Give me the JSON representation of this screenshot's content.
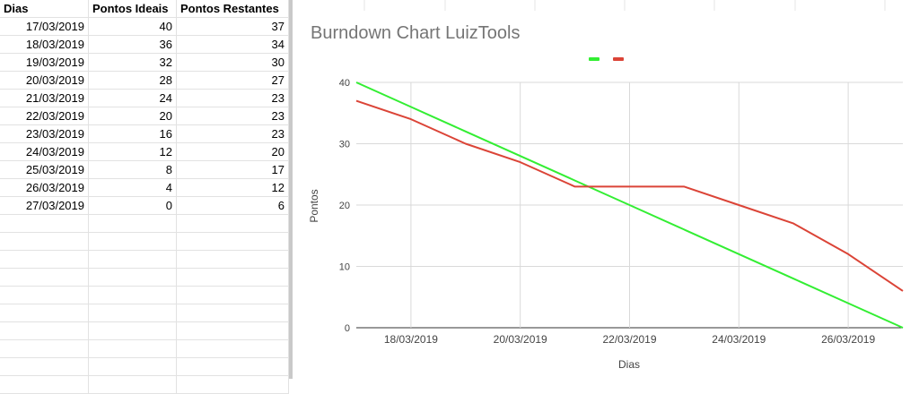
{
  "sheet": {
    "headers": [
      "Dias",
      "Pontos Ideais",
      "Pontos Restantes"
    ],
    "rows": [
      [
        "17/03/2019",
        "40",
        "37"
      ],
      [
        "18/03/2019",
        "36",
        "34"
      ],
      [
        "19/03/2019",
        "32",
        "30"
      ],
      [
        "20/03/2019",
        "28",
        "27"
      ],
      [
        "21/03/2019",
        "24",
        "23"
      ],
      [
        "22/03/2019",
        "20",
        "23"
      ],
      [
        "23/03/2019",
        "16",
        "23"
      ],
      [
        "24/03/2019",
        "12",
        "20"
      ],
      [
        "25/03/2019",
        "8",
        "17"
      ],
      [
        "26/03/2019",
        "4",
        "12"
      ],
      [
        "27/03/2019",
        "0",
        "6"
      ]
    ]
  },
  "chart_data": {
    "type": "line",
    "title": "Burndown Chart LuizTools",
    "xlabel": "Dias",
    "ylabel": "Pontos",
    "x": [
      "17/03/2019",
      "18/03/2019",
      "19/03/2019",
      "20/03/2019",
      "21/03/2019",
      "22/03/2019",
      "23/03/2019",
      "24/03/2019",
      "25/03/2019",
      "26/03/2019",
      "27/03/2019"
    ],
    "x_tick_labels": [
      "18/03/2019",
      "20/03/2019",
      "22/03/2019",
      "24/03/2019",
      "26/03/2019"
    ],
    "ylim": [
      0,
      40
    ],
    "y_ticks": [
      0,
      10,
      20,
      30,
      40
    ],
    "grid": true,
    "legend": "top-center",
    "series": [
      {
        "values": [
          40,
          36,
          32,
          28,
          24,
          20,
          16,
          12,
          8,
          4,
          0
        ],
        "color": "#33ee33"
      },
      {
        "values": [
          37,
          34,
          30,
          27,
          23,
          23,
          23,
          20,
          17,
          12,
          6
        ],
        "color": "#db4437"
      }
    ]
  }
}
